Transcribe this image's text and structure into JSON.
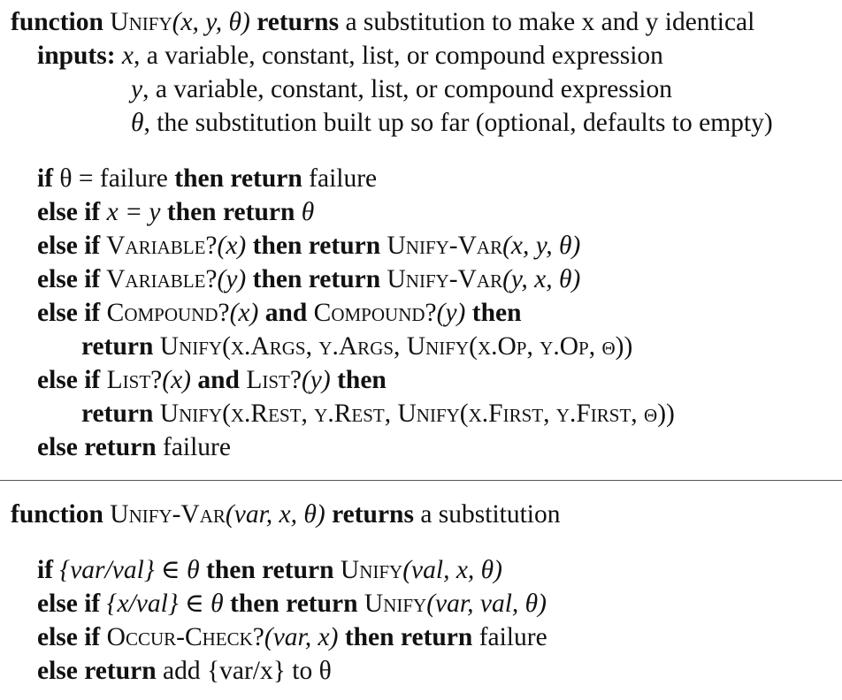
{
  "unify": {
    "header": {
      "kw_function": "function",
      "name": "Unify",
      "params": "(x, y, θ)",
      "kw_returns": "returns",
      "desc": " a substitution to make x and y identical"
    },
    "inputs": {
      "label": "inputs:",
      "x_name": "x",
      "x_desc": ", a variable, constant, list, or compound expression",
      "y_name": "y",
      "y_desc": ", a variable, constant, list, or compound expression",
      "theta_name": "θ",
      "theta_desc": ", the substitution built up so far (optional, defaults to empty)"
    },
    "body": {
      "l1": {
        "kw_if": "if",
        "cond": " θ = failure ",
        "kw_then_return": "then return",
        "result": " failure"
      },
      "l2": {
        "kw_else_if": "else if",
        "cond": " x = y ",
        "kw_then_return": "then return",
        "result": " θ"
      },
      "l3": {
        "kw_else_if": "else if",
        "fn": " Variable?",
        "arg": "(x) ",
        "kw_then_return": "then return",
        "call": " Unify-Var",
        "call_args": "(x, y, θ)"
      },
      "l4": {
        "kw_else_if": "else if",
        "fn": " Variable?",
        "arg": "(y) ",
        "kw_then_return": "then return",
        "call": " Unify-Var",
        "call_args": "(y, x, θ)"
      },
      "l5": {
        "kw_else_if": "else if",
        "fn1": " Compound?",
        "arg1": "(x) ",
        "kw_and": "and",
        "fn2": " Compound?",
        "arg2": "(y) ",
        "kw_then": "then"
      },
      "l6": {
        "kw_return": "return",
        "text": " Unify(x.Args, y.Args, Unify(x.Op, y.Op, θ))"
      },
      "l7": {
        "kw_else_if": "else if",
        "fn1": " List?",
        "arg1": "(x) ",
        "kw_and": "and",
        "fn2": " List?",
        "arg2": "(y) ",
        "kw_then": "then"
      },
      "l8": {
        "kw_return": "return",
        "text": " Unify(x.Rest, y.Rest, Unify(x.First, y.First, θ))"
      },
      "l9": {
        "kw_else_return": "else return",
        "result": " failure"
      }
    }
  },
  "unify_var": {
    "header": {
      "kw_function": "function",
      "name": "Unify-Var",
      "params": "(var, x, θ)",
      "kw_returns": "returns",
      "desc": " a substitution"
    },
    "body": {
      "l1": {
        "kw_if": "if",
        "cond": " {var/val} ∈ θ ",
        "kw_then_return": "then return",
        "call": " Unify",
        "call_args": "(val, x, θ)"
      },
      "l2": {
        "kw_else_if": "else if",
        "cond": " {x/val} ∈ θ ",
        "kw_then_return": "then return",
        "call": " Unify",
        "call_args": "(var, val, θ)"
      },
      "l3": {
        "kw_else_if": "else if",
        "fn": " Occur-Check?",
        "arg": "(var, x) ",
        "kw_then_return": "then return",
        "result": " failure"
      },
      "l4": {
        "kw_else_return": "else return",
        "result": " add {var/x} to θ"
      }
    }
  }
}
